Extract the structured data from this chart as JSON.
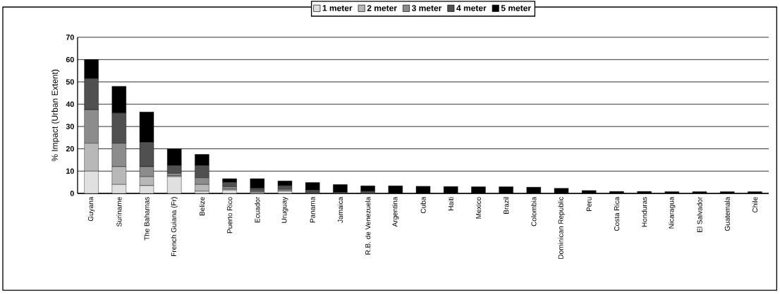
{
  "chart_data": {
    "type": "bar",
    "stacked": true,
    "ylabel": "% Impact (Urban Extent)",
    "categories": [
      "Guyana",
      "Suriname",
      "The Bahamas",
      "French Guiana (Fr)",
      "Belize",
      "Puerto Rico",
      "Ecuador",
      "Uruguay",
      "Panama",
      "Jamaica",
      "R.B. de Venezuela",
      "Argentina",
      "Cuba",
      "Haiti",
      "Mexico",
      "Brazil",
      "Colombia",
      "Dominican Republic",
      "Peru",
      "Costa Rica",
      "Honduras",
      "Nicaragua",
      "El Salvador",
      "Guatemala",
      "Chile"
    ],
    "series": [
      {
        "name": "1 meter",
        "color": "#e0e0e0",
        "values": [
          10,
          4,
          3.5,
          7.5,
          1,
          1.5,
          0.5,
          1,
          null,
          0,
          null,
          0,
          0,
          0,
          0,
          0,
          0,
          0,
          0,
          0,
          0,
          0,
          0,
          0,
          0
        ]
      },
      {
        "name": "2 meter",
        "color": "#b8b8b8",
        "values": [
          12.5,
          8,
          4,
          0.5,
          3,
          0.5,
          0.3,
          0.5,
          0.2,
          0,
          0.2,
          0,
          0,
          0,
          0,
          0,
          0,
          0,
          0,
          0,
          0,
          0,
          0,
          0,
          0
        ]
      },
      {
        "name": "3 meter",
        "color": "#8c8c8c",
        "values": [
          15,
          10.5,
          4.5,
          1,
          3,
          1,
          0.5,
          0.5,
          0.3,
          0,
          0.3,
          0,
          0,
          0,
          0,
          0,
          0,
          0,
          0,
          0,
          0,
          0,
          0,
          0,
          0
        ]
      },
      {
        "name": "4 meter",
        "color": "#505050",
        "values": [
          14,
          13.5,
          11,
          3.5,
          5.5,
          2,
          1,
          1.5,
          1,
          0.5,
          0.5,
          0,
          0,
          0,
          0,
          0,
          0,
          0,
          0,
          0,
          0,
          0,
          0,
          0,
          0
        ]
      },
      {
        "name": "5 meter",
        "color": "#000000",
        "values": [
          8.5,
          12,
          13.5,
          7.5,
          5,
          1.6,
          4.3,
          2.1,
          3.4,
          3.5,
          2.4,
          3.4,
          3.2,
          3.1,
          3,
          3,
          2.8,
          2.3,
          1.3,
          0.9,
          0.9,
          0.8,
          0.8,
          0.8,
          0.8
        ]
      }
    ],
    "ylim": [
      0,
      70
    ],
    "yticks": [
      0,
      10,
      20,
      30,
      40,
      50,
      60,
      70
    ],
    "grid": "y",
    "legend": "top"
  }
}
